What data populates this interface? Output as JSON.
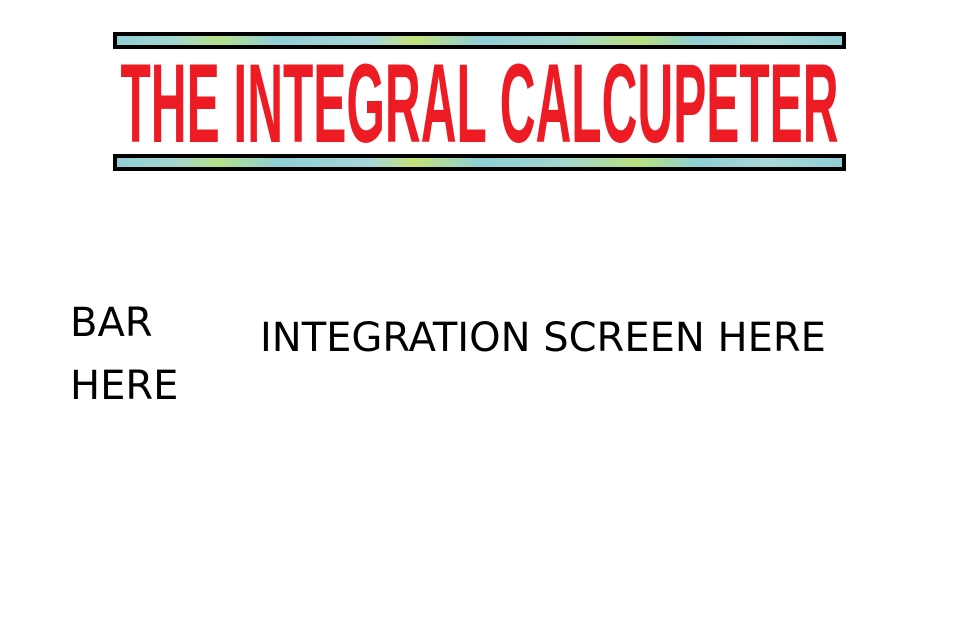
{
  "logo": {
    "title": "THE INTEGRAL CALCUPETER",
    "title_color": "#ed1c24",
    "bar_border_color": "#000000",
    "bar_fill_color": "#8fcfd6"
  },
  "sidebar_placeholder": {
    "line1": "BAR",
    "line2": "HERE"
  },
  "main_placeholder": {
    "text": "INTEGRATION SCREEN HERE"
  }
}
